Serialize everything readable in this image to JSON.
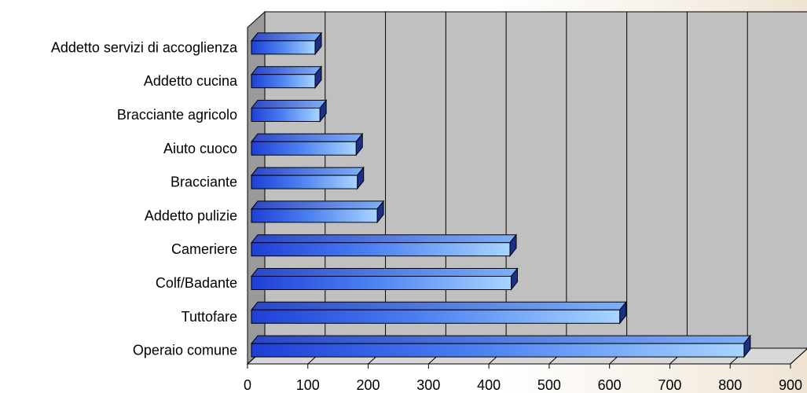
{
  "chart_data": {
    "type": "bar",
    "orientation": "horizontal",
    "style": "3d",
    "categories": [
      "Addetto servizi di accoglienza",
      "Addetto cucina",
      "Bracciante agricolo",
      "Aiuto cuoco",
      "Bracciante",
      "Addetto pulizie",
      "Cameriere",
      "Colf/Badante",
      "Tuttofare",
      "Operaio comune"
    ],
    "values": [
      112,
      112,
      120,
      180,
      182,
      215,
      435,
      437,
      617,
      823
    ],
    "xticks": [
      "0",
      "100",
      "200",
      "300",
      "400",
      "500",
      "600",
      "700",
      "800",
      "900"
    ],
    "xlim": [
      0,
      900
    ],
    "title": "",
    "xlabel": "",
    "ylabel": "",
    "grid": true,
    "legend": "none",
    "colors": {
      "bar_dark": "#1f3fd6",
      "bar_mid": "#4a7ff0",
      "bar_light": "#a8d4ff",
      "bar_top": "#5a7fe0",
      "bar_side": "#1a2f8a",
      "wall": "#c0c0c0",
      "floor": "#d8d8d8",
      "gridline": "#000000"
    }
  }
}
